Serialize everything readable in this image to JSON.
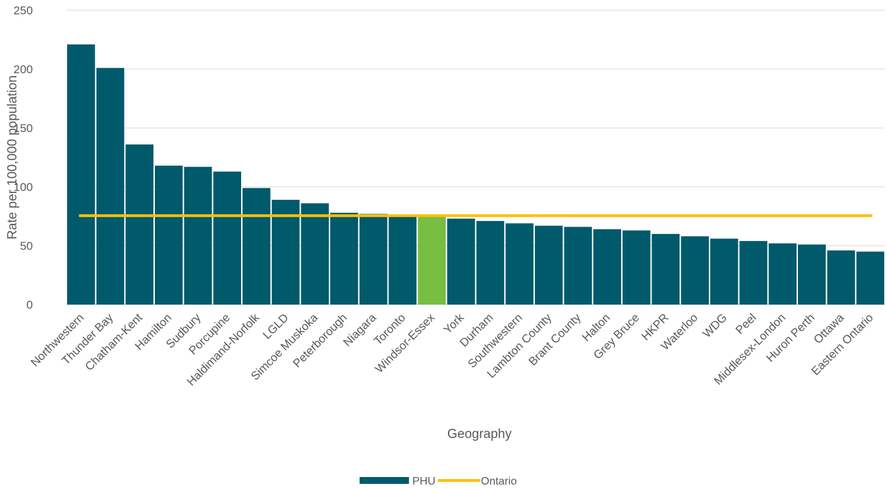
{
  "chart_data": {
    "type": "bar",
    "xlabel": "Geography",
    "ylabel": "Rate per 100,000 population",
    "ylim": [
      0,
      250
    ],
    "yticks": [
      0,
      50,
      100,
      150,
      200,
      250
    ],
    "grid": true,
    "legend_position": "bottom",
    "categories": [
      "Northwestern",
      "Thunder Bay",
      "Chatham-Kent",
      "Hamilton",
      "Sudbury",
      "Porcupine",
      "Haldimand-Norfolk",
      "LGLD",
      "Simcoe Muskoka",
      "Peterborough",
      "Niagara",
      "Toronto",
      "Windsor-Essex",
      "York",
      "Durham",
      "Southwestern",
      "Lambton County",
      "Brant County",
      "Halton",
      "Grey Bruce",
      "HKPR",
      "Waterloo",
      "WDG",
      "Peel",
      "Middlesex-London",
      "Huron Perth",
      "Ottawa",
      "Eastern Ontario"
    ],
    "series": [
      {
        "name": "PHU",
        "type": "bar",
        "color": "#005A6B",
        "values": [
          221,
          201,
          136,
          118,
          117,
          113,
          99,
          89,
          86,
          78,
          77,
          76,
          75,
          73,
          71,
          69,
          67,
          66,
          64,
          63,
          60,
          58,
          56,
          54,
          52,
          51,
          46,
          45
        ]
      },
      {
        "name": "Ontario",
        "type": "line",
        "color": "#FFC000",
        "value": 75.5
      }
    ],
    "highlight": {
      "category": "Windsor-Essex",
      "color": "#78BE43"
    }
  }
}
